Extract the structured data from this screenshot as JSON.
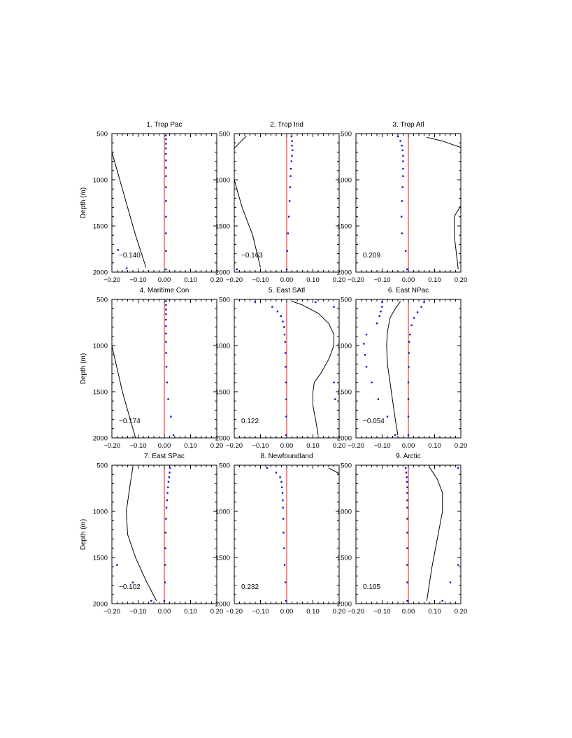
{
  "colors": {
    "background": "#ffffff",
    "axis": "#000000",
    "zero_line": "#e8161b",
    "points": "#1515d0",
    "curve": "#000000"
  },
  "chart_data": [
    {
      "type": "line",
      "title": "1. Trop Pac",
      "annotation": "−0.140",
      "ylabel": "Depth (m)",
      "xlim": [
        -0.2,
        0.2
      ],
      "ylim": [
        500,
        2000
      ],
      "y_inverted": true,
      "xticks": [
        "−0.20",
        "−0.10",
        "0.00",
        "0.10",
        "0.20"
      ],
      "yticks": [
        "500",
        "1000",
        "1500",
        "2000"
      ],
      "curve": [
        [
          -0.2,
          700
        ],
        [
          -0.17,
          1000
        ],
        [
          -0.14,
          1300
        ],
        [
          -0.11,
          1600
        ],
        [
          -0.07,
          1950
        ]
      ],
      "points": [
        [
          0.006,
          520
        ],
        [
          0.006,
          560
        ],
        [
          0.006,
          610
        ],
        [
          0.006,
          660
        ],
        [
          0.006,
          720
        ],
        [
          0.006,
          790
        ],
        [
          0.006,
          870
        ],
        [
          0.006,
          960
        ],
        [
          0.006,
          1080
        ],
        [
          0.006,
          1230
        ],
        [
          0.006,
          1400
        ],
        [
          0.006,
          1580
        ],
        [
          0.006,
          1770
        ],
        [
          0.006,
          1970
        ],
        [
          -0.177,
          1760
        ],
        [
          -0.144,
          1960
        ]
      ]
    },
    {
      "type": "line",
      "title": "2. Trop Ind",
      "annotation": "−0.163",
      "xlim": [
        -0.2,
        0.2
      ],
      "ylim": [
        500,
        2000
      ],
      "y_inverted": true,
      "xticks": [
        "−0.20",
        "−0.10",
        "0.00",
        "0.10",
        "0.20"
      ],
      "yticks": [
        "500",
        "1000",
        "1500",
        "2000"
      ],
      "curve": [
        [
          -0.155,
          530
        ],
        [
          -0.18,
          600
        ],
        [
          -0.2,
          660
        ],
        [
          -0.2,
          1000
        ],
        [
          -0.17,
          1300
        ],
        [
          -0.13,
          1600
        ],
        [
          -0.1,
          1950
        ]
      ],
      "points": [
        [
          0.018,
          530
        ],
        [
          0.02,
          580
        ],
        [
          0.02,
          630
        ],
        [
          0.022,
          680
        ],
        [
          0.02,
          740
        ],
        [
          0.018,
          800
        ],
        [
          0.016,
          880
        ],
        [
          0.015,
          960
        ],
        [
          0.013,
          1080
        ],
        [
          0.011,
          1230
        ],
        [
          0.008,
          1400
        ],
        [
          0.005,
          1580
        ],
        [
          0.002,
          1770
        ],
        [
          0.0,
          1970
        ],
        [
          -0.19,
          1970
        ]
      ]
    },
    {
      "type": "line",
      "title": "3. Trop Atl",
      "annotation": "0.209",
      "xlim": [
        -0.2,
        0.2
      ],
      "ylim": [
        500,
        2000
      ],
      "y_inverted": true,
      "xticks": [
        "−0.20",
        "−0.10",
        "0.00",
        "0.10",
        "0.20"
      ],
      "yticks": [
        "500",
        "1000",
        "1500",
        "2000"
      ],
      "curve": [
        [
          0.07,
          540
        ],
        [
          0.13,
          580
        ],
        [
          0.2,
          650
        ],
        [
          0.2,
          1280
        ],
        [
          0.175,
          1400
        ],
        [
          0.175,
          1600
        ],
        [
          0.19,
          1970
        ]
      ],
      "points": [
        [
          -0.04,
          530
        ],
        [
          -0.03,
          580
        ],
        [
          -0.025,
          630
        ],
        [
          -0.022,
          680
        ],
        [
          -0.02,
          740
        ],
        [
          -0.02,
          800
        ],
        [
          -0.02,
          880
        ],
        [
          -0.02,
          960
        ],
        [
          -0.022,
          1080
        ],
        [
          -0.024,
          1230
        ],
        [
          -0.026,
          1400
        ],
        [
          -0.024,
          1580
        ],
        [
          -0.01,
          1770
        ],
        [
          -0.005,
          1970
        ]
      ]
    },
    {
      "type": "line",
      "title": "4. Maritime Con",
      "annotation": "−0.174",
      "ylabel": "Depth (m)",
      "xlim": [
        -0.2,
        0.2
      ],
      "ylim": [
        500,
        2000
      ],
      "y_inverted": true,
      "xticks": [
        "−0.20",
        "−0.10",
        "0.00",
        "0.10",
        "0.20"
      ],
      "yticks": [
        "500",
        "1000",
        "1500",
        "2000"
      ],
      "curve": [
        [
          -0.2,
          1000
        ],
        [
          -0.18,
          1250
        ],
        [
          -0.16,
          1500
        ],
        [
          -0.14,
          1700
        ],
        [
          -0.11,
          2000
        ]
      ],
      "points": [
        [
          0.006,
          520
        ],
        [
          0.006,
          560
        ],
        [
          0.006,
          610
        ],
        [
          0.006,
          660
        ],
        [
          0.006,
          720
        ],
        [
          0.006,
          790
        ],
        [
          0.006,
          870
        ],
        [
          0.006,
          960
        ],
        [
          0.007,
          1080
        ],
        [
          0.008,
          1230
        ],
        [
          0.01,
          1400
        ],
        [
          0.015,
          1580
        ],
        [
          0.025,
          1770
        ],
        [
          0.035,
          1970
        ]
      ]
    },
    {
      "type": "line",
      "title": "5. East SAtl",
      "annotation": "0.122",
      "xlim": [
        -0.2,
        0.2
      ],
      "ylim": [
        500,
        2000
      ],
      "y_inverted": true,
      "xticks": [
        "−0.20",
        "−0.10",
        "0.00",
        "0.10",
        "0.20"
      ],
      "yticks": [
        "500",
        "1000",
        "1500",
        "2000"
      ],
      "curve": [
        [
          0.02,
          520
        ],
        [
          0.06,
          560
        ],
        [
          0.12,
          650
        ],
        [
          0.16,
          760
        ],
        [
          0.18,
          880
        ],
        [
          0.18,
          1000
        ],
        [
          0.16,
          1150
        ],
        [
          0.13,
          1300
        ],
        [
          0.105,
          1400
        ],
        [
          0.1,
          1500
        ],
        [
          0.1,
          1650
        ],
        [
          0.11,
          1800
        ],
        [
          0.12,
          1970
        ]
      ],
      "points": [
        [
          -0.12,
          530
        ],
        [
          -0.055,
          580
        ],
        [
          -0.035,
          630
        ],
        [
          -0.022,
          680
        ],
        [
          -0.015,
          740
        ],
        [
          -0.01,
          800
        ],
        [
          -0.008,
          880
        ],
        [
          -0.006,
          960
        ],
        [
          -0.005,
          1080
        ],
        [
          -0.004,
          1230
        ],
        [
          -0.003,
          1400
        ],
        [
          -0.002,
          1580
        ],
        [
          -0.002,
          1770
        ],
        [
          -0.002,
          1970
        ],
        [
          0.11,
          530
        ],
        [
          0.18,
          580
        ],
        [
          0.18,
          1400
        ],
        [
          0.185,
          1580
        ]
      ]
    },
    {
      "type": "line",
      "title": "6. East NPac",
      "annotation": "−0.054",
      "xlim": [
        -0.2,
        0.2
      ],
      "ylim": [
        500,
        2000
      ],
      "y_inverted": true,
      "xticks": [
        "−0.20",
        "−0.10",
        "0.00",
        "0.10",
        "0.20"
      ],
      "yticks": [
        "500",
        "1000",
        "1500",
        "2000"
      ],
      "curve": [
        [
          -0.03,
          520
        ],
        [
          -0.05,
          600
        ],
        [
          -0.07,
          700
        ],
        [
          -0.08,
          850
        ],
        [
          -0.083,
          1000
        ],
        [
          -0.08,
          1200
        ],
        [
          -0.07,
          1400
        ],
        [
          -0.06,
          1600
        ],
        [
          -0.05,
          1800
        ],
        [
          -0.04,
          1970
        ]
      ],
      "points": [
        [
          -0.1,
          530
        ],
        [
          -0.1,
          580
        ],
        [
          -0.105,
          630
        ],
        [
          -0.11,
          680
        ],
        [
          -0.12,
          760
        ],
        [
          -0.16,
          880
        ],
        [
          -0.17,
          980
        ],
        [
          -0.165,
          1100
        ],
        [
          -0.16,
          1230
        ],
        [
          -0.14,
          1400
        ],
        [
          -0.115,
          1580
        ],
        [
          -0.08,
          1770
        ],
        [
          -0.05,
          1970
        ],
        [
          0.06,
          530
        ],
        [
          0.05,
          580
        ],
        [
          0.035,
          640
        ],
        [
          0.022,
          700
        ],
        [
          0.012,
          780
        ],
        [
          0.006,
          880
        ],
        [
          0.003,
          960
        ],
        [
          0.002,
          1080
        ],
        [
          0.001,
          1230
        ],
        [
          0.0,
          1400
        ],
        [
          0.0,
          1580
        ],
        [
          0.0,
          1770
        ],
        [
          0.0,
          1970
        ]
      ]
    },
    {
      "type": "line",
      "title": "7. East SPac",
      "annotation": "−0.102",
      "ylabel": "Depth (m)",
      "xlim": [
        -0.2,
        0.2
      ],
      "ylim": [
        500,
        2000
      ],
      "y_inverted": true,
      "xticks": [
        "−0.20",
        "−0.10",
        "0.00",
        "0.10",
        "0.20"
      ],
      "yticks": [
        "500",
        "1000",
        "1500",
        "2000"
      ],
      "curve": [
        [
          -0.12,
          520
        ],
        [
          -0.13,
          700
        ],
        [
          -0.14,
          900
        ],
        [
          -0.145,
          1000
        ],
        [
          -0.14,
          1250
        ],
        [
          -0.11,
          1500
        ],
        [
          -0.07,
          1750
        ],
        [
          -0.03,
          1970
        ]
      ],
      "points": [
        [
          0.022,
          530
        ],
        [
          0.02,
          580
        ],
        [
          0.018,
          630
        ],
        [
          0.016,
          680
        ],
        [
          0.014,
          740
        ],
        [
          0.012,
          800
        ],
        [
          0.01,
          880
        ],
        [
          0.008,
          960
        ],
        [
          0.006,
          1080
        ],
        [
          0.005,
          1230
        ],
        [
          0.004,
          1400
        ],
        [
          0.003,
          1580
        ],
        [
          0.002,
          1770
        ],
        [
          0.0,
          1970
        ],
        [
          -0.18,
          1580
        ],
        [
          -0.12,
          1770
        ],
        [
          -0.05,
          1970
        ]
      ]
    },
    {
      "type": "line",
      "title": "8. Newfoundland",
      "annotation": "0.232",
      "xlim": [
        -0.2,
        0.2
      ],
      "ylim": [
        500,
        2000
      ],
      "y_inverted": true,
      "xticks": [
        "−0.20",
        "−0.10",
        "0.00",
        "0.10",
        "0.20"
      ],
      "yticks": [
        "500",
        "1000",
        "1500",
        "2000"
      ],
      "curve": [
        [
          0.16,
          530
        ],
        [
          0.2,
          590
        ]
      ],
      "points": [
        [
          -0.075,
          530
        ],
        [
          -0.04,
          580
        ],
        [
          -0.025,
          630
        ],
        [
          -0.02,
          680
        ],
        [
          -0.018,
          740
        ],
        [
          -0.016,
          800
        ],
        [
          -0.015,
          880
        ],
        [
          -0.014,
          960
        ],
        [
          -0.013,
          1080
        ],
        [
          -0.012,
          1230
        ],
        [
          -0.01,
          1400
        ],
        [
          -0.008,
          1580
        ],
        [
          -0.005,
          1770
        ],
        [
          -0.003,
          1970
        ]
      ]
    },
    {
      "type": "line",
      "title": "9. Arctic",
      "annotation": "0.105",
      "xlim": [
        -0.2,
        0.2
      ],
      "ylim": [
        500,
        2000
      ],
      "y_inverted": true,
      "xticks": [
        "−0.20",
        "−0.10",
        "0.00",
        "0.10",
        "0.20"
      ],
      "yticks": [
        "500",
        "1000",
        "1500",
        "2000"
      ],
      "curve": [
        [
          0.08,
          520
        ],
        [
          0.11,
          650
        ],
        [
          0.13,
          800
        ],
        [
          0.13,
          1000
        ],
        [
          0.11,
          1300
        ],
        [
          0.09,
          1600
        ],
        [
          0.07,
          1970
        ]
      ],
      "points": [
        [
          -0.01,
          530
        ],
        [
          -0.008,
          580
        ],
        [
          -0.006,
          630
        ],
        [
          -0.005,
          680
        ],
        [
          -0.004,
          740
        ],
        [
          -0.004,
          800
        ],
        [
          -0.004,
          880
        ],
        [
          -0.004,
          960
        ],
        [
          -0.004,
          1080
        ],
        [
          -0.004,
          1230
        ],
        [
          -0.004,
          1400
        ],
        [
          -0.004,
          1580
        ],
        [
          -0.004,
          1770
        ],
        [
          -0.004,
          1970
        ],
        [
          0.19,
          530
        ],
        [
          0.19,
          1580
        ],
        [
          0.16,
          1770
        ],
        [
          0.13,
          1970
        ]
      ]
    }
  ]
}
